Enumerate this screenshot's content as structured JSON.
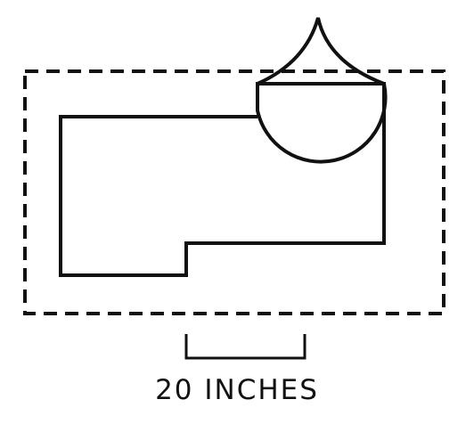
{
  "scale_bar": {
    "label": "20 INCHES"
  },
  "colors": {
    "stroke": "#111111",
    "background": "#ffffff"
  }
}
